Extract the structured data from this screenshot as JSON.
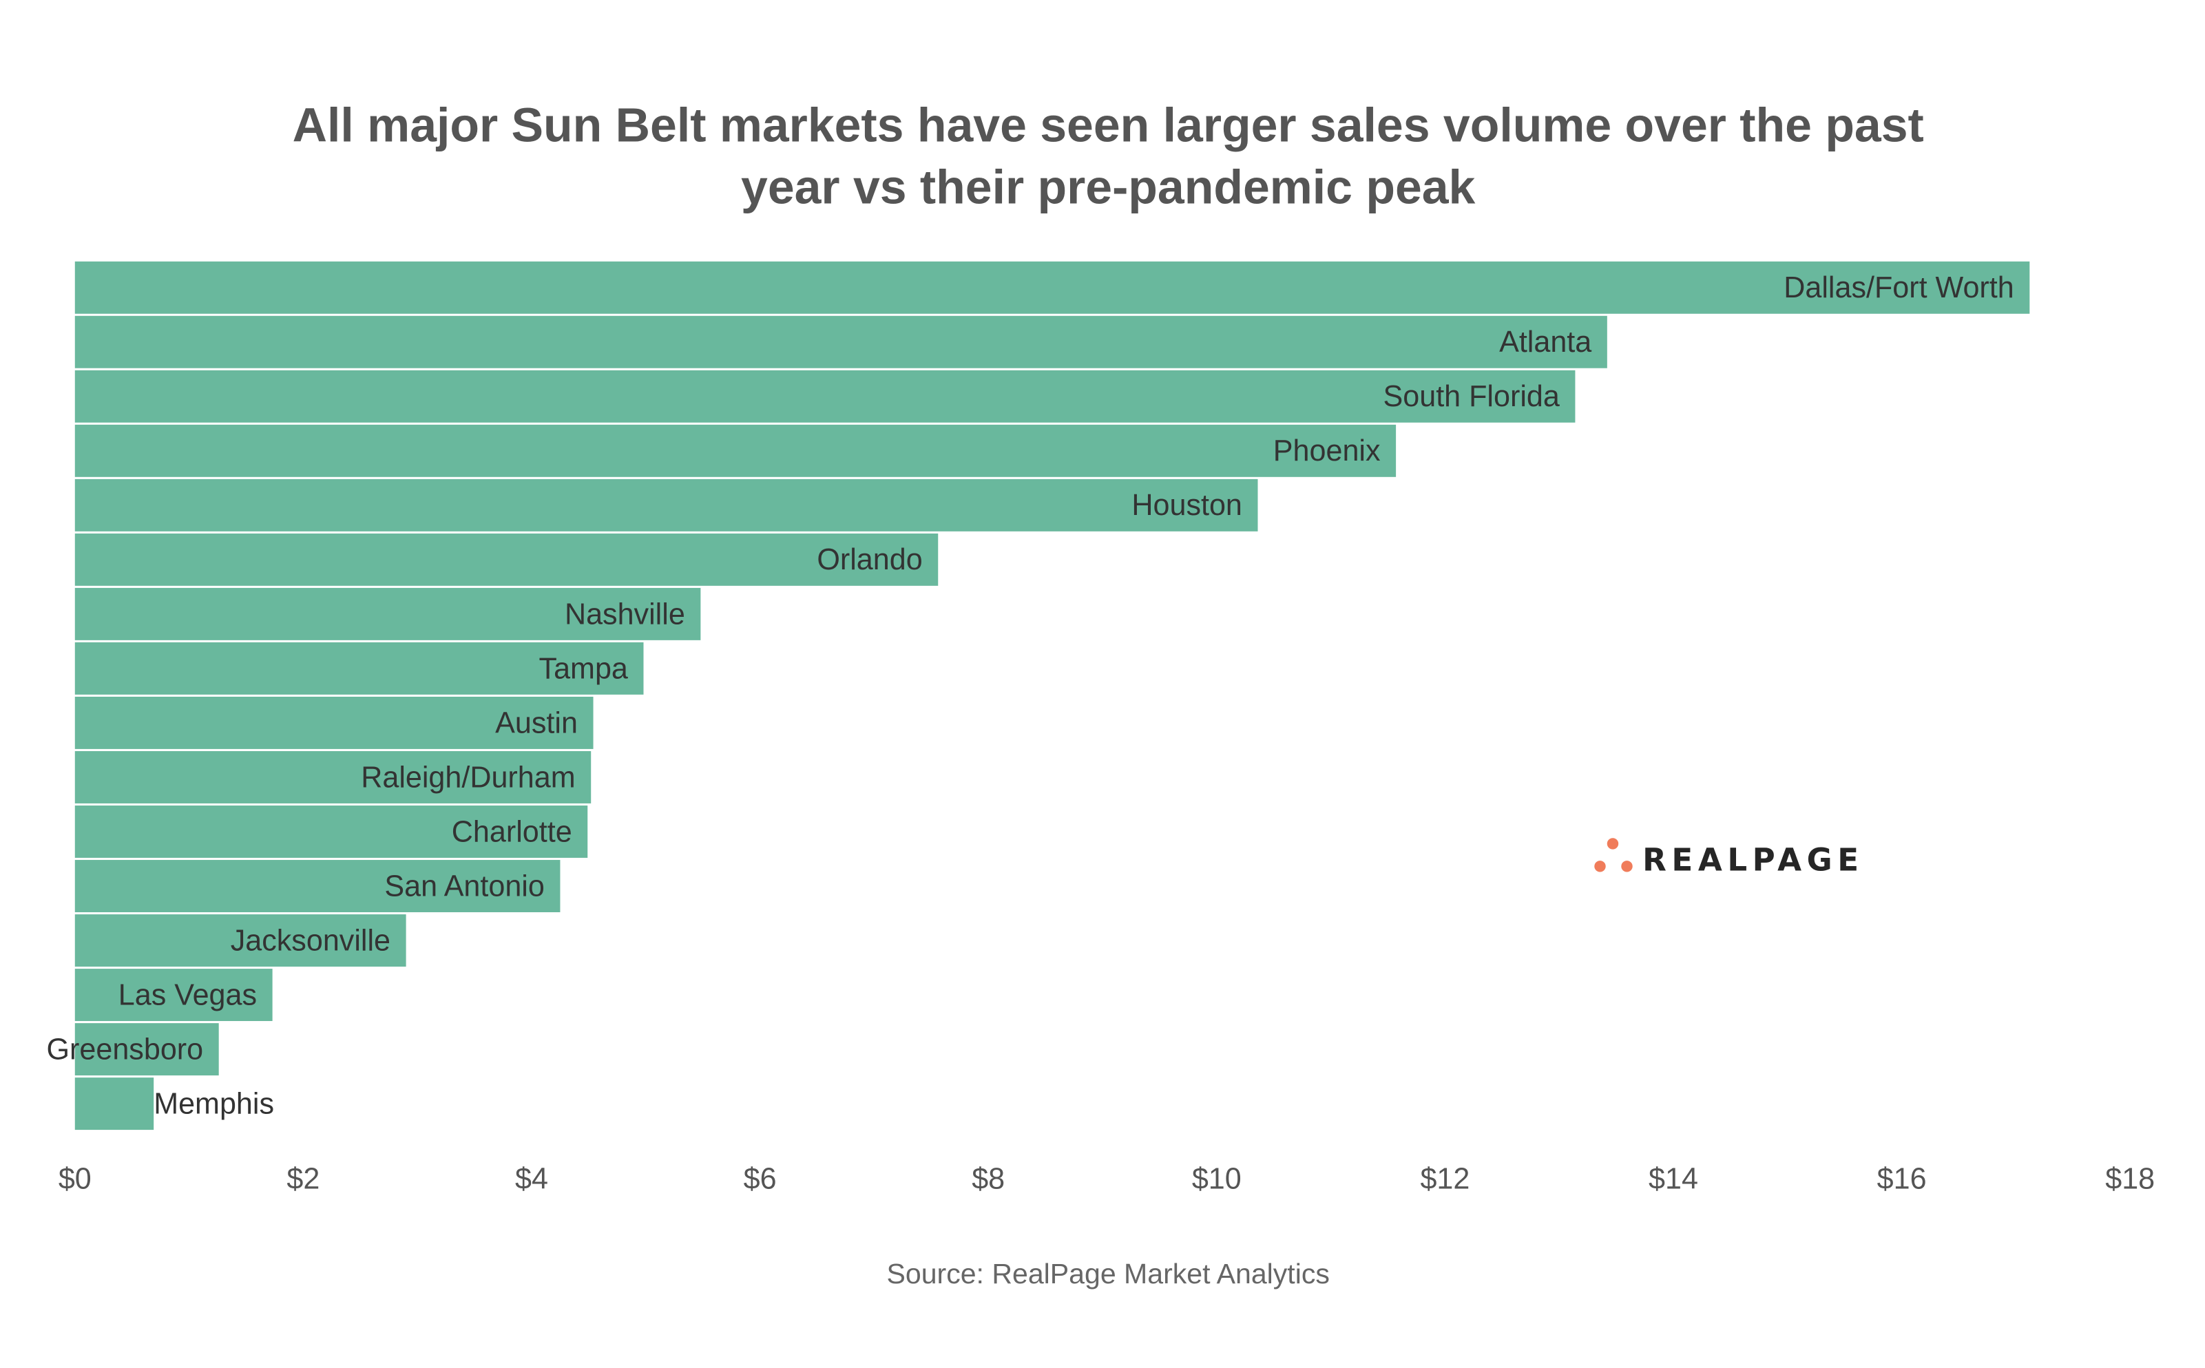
{
  "chart_data": {
    "type": "bar",
    "orientation": "horizontal",
    "title": "All major Sun Belt markets have seen larger sales volume over the past year vs their pre-pandemic peak",
    "title_lines": [
      "All major Sun Belt markets have seen larger sales volume over the past",
      "year vs their pre-pandemic peak"
    ],
    "categories": [
      "Dallas/Fort Worth",
      "Atlanta",
      "South Florida",
      "Phoenix",
      "Houston",
      "Orlando",
      "Nashville",
      "Tampa",
      "Austin",
      "Raleigh/Durham",
      "Charlotte",
      "San Antonio",
      "Jacksonville",
      "Las Vegas",
      "Greensboro",
      "Memphis"
    ],
    "values": [
      17.12,
      13.42,
      13.14,
      11.57,
      10.36,
      7.56,
      5.48,
      4.98,
      4.54,
      4.52,
      4.49,
      4.25,
      2.9,
      1.73,
      1.26,
      0.69
    ],
    "xlim": [
      0,
      18
    ],
    "xticks": [
      0,
      2,
      4,
      6,
      8,
      10,
      12,
      14,
      16,
      18
    ],
    "xtick_labels": [
      "$0",
      "$2",
      "$4",
      "$6",
      "$8",
      "$10",
      "$12",
      "$14",
      "$16",
      "$18"
    ],
    "xlabel": "",
    "ylabel": "",
    "grid": false,
    "bar_color": "#69b89d",
    "source": "Source: RealPage Market Analytics"
  },
  "logo": {
    "text": "REALPAGE",
    "dot_color": "#f07c5a"
  }
}
